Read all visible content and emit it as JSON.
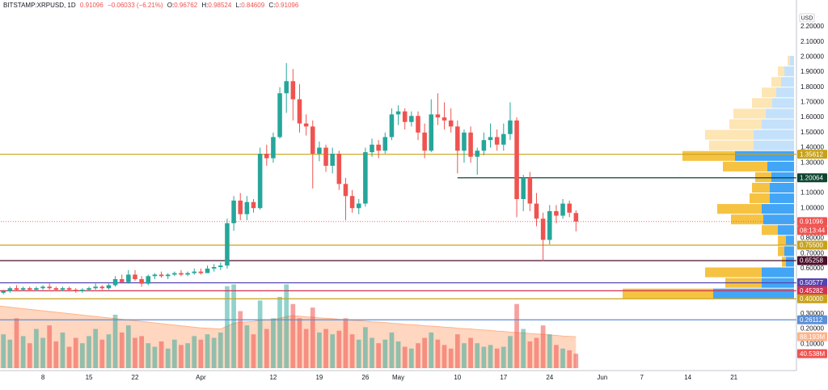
{
  "chart_data": {
    "type": "candlestick",
    "header": {
      "symbol": "BITSTAMP:XRPUSD, 1D",
      "change": "−0.06033 (−6.21%)",
      "o": "O:",
      "h": "H:",
      "l": "L:",
      "c": "C:"
    },
    "currency": "USD",
    "countdown": "08:13:44",
    "categories": [
      null,
      null,
      null,
      null,
      null,
      null,
      null,
      "8",
      null,
      null,
      null,
      null,
      null,
      null,
      "15",
      null,
      null,
      null,
      null,
      null,
      null,
      "22",
      null,
      null,
      null,
      null,
      null,
      null,
      null,
      null,
      null,
      "Apr",
      null,
      null,
      null,
      null,
      null,
      null,
      null,
      null,
      null,
      null,
      "12",
      null,
      null,
      null,
      null,
      null,
      null,
      "19",
      null,
      null,
      null,
      null,
      null,
      null,
      "26",
      null,
      null,
      null,
      null,
      "May",
      null,
      null,
      null,
      null,
      null,
      null,
      null,
      null,
      "10",
      null,
      null,
      null,
      null,
      null,
      null,
      "17",
      null,
      null,
      null,
      null,
      null,
      null,
      "24",
      null,
      null,
      null,
      null,
      null,
      null,
      null,
      "Jun",
      null,
      null,
      null,
      null,
      null,
      "7",
      null,
      null,
      null,
      null,
      null,
      null,
      "14",
      null,
      null,
      null,
      null,
      null,
      null,
      "21",
      null,
      null,
      null,
      null,
      null,
      null,
      null,
      null,
      null
    ],
    "open": [
      0.42,
      0.44,
      0.45,
      0.47,
      0.46,
      0.47,
      0.46,
      0.47,
      0.48,
      0.47,
      0.46,
      0.47,
      0.46,
      0.45,
      0.46,
      0.47,
      0.48,
      0.47,
      0.49,
      0.53,
      0.51,
      0.56,
      0.53,
      0.5,
      0.55,
      0.56,
      0.55,
      0.56,
      0.57,
      0.56,
      0.57,
      0.58,
      0.57,
      0.6,
      0.61,
      0.62,
      0.9,
      1.05,
      0.96,
      1.04,
      1.0,
      1.36,
      1.33,
      1.47,
      1.76,
      1.84,
      1.72,
      1.56,
      1.54,
      1.36,
      1.4,
      1.28,
      1.36,
      1.16,
      1.08,
      1.0,
      1.03,
      1.37,
      1.42,
      1.38,
      1.47,
      1.62,
      1.64,
      1.57,
      1.61,
      1.5,
      1.38,
      1.62,
      1.6,
      1.58,
      1.54,
      1.38,
      1.5,
      1.34,
      1.38,
      1.45,
      1.47,
      1.42,
      1.49,
      1.58,
      1.06,
      1.2,
      1.03,
      0.93,
      0.79,
      0.98,
      0.95,
      1.03,
      0.96762,
      null,
      null,
      null,
      null,
      null,
      null,
      null,
      null,
      null,
      null,
      null,
      null,
      null,
      null,
      null,
      null,
      null,
      null,
      null,
      null,
      null,
      null,
      null,
      null,
      null,
      null,
      null,
      null,
      null,
      null,
      null,
      null,
      null
    ],
    "high": [
      0.46,
      0.46,
      0.48,
      0.49,
      0.48,
      0.48,
      0.48,
      0.49,
      0.5,
      0.48,
      0.48,
      0.48,
      0.47,
      0.47,
      0.48,
      0.5,
      0.49,
      0.5,
      0.55,
      0.56,
      0.59,
      0.59,
      0.55,
      0.56,
      0.57,
      0.58,
      0.57,
      0.58,
      0.59,
      0.58,
      0.6,
      0.6,
      0.62,
      0.63,
      0.64,
      0.93,
      1.08,
      1.1,
      1.08,
      1.06,
      1.4,
      1.42,
      1.5,
      1.8,
      1.96,
      1.92,
      1.82,
      1.62,
      1.58,
      1.44,
      1.42,
      1.4,
      1.38,
      1.2,
      1.12,
      1.06,
      1.4,
      1.46,
      1.45,
      1.5,
      1.66,
      1.68,
      1.66,
      1.64,
      1.64,
      1.56,
      1.72,
      1.76,
      1.7,
      1.66,
      1.58,
      1.52,
      1.54,
      1.4,
      1.5,
      1.56,
      1.52,
      1.56,
      1.7,
      1.6,
      1.22,
      1.24,
      1.1,
      0.97,
      1.02,
      1.02,
      1.06,
      1.05,
      0.98524,
      null,
      null,
      null,
      null,
      null,
      null,
      null,
      null,
      null,
      null,
      null,
      null,
      null,
      null,
      null,
      null,
      null,
      null,
      null,
      null,
      null,
      null,
      null,
      null,
      null,
      null,
      null,
      null,
      null,
      null,
      null,
      null,
      null
    ],
    "low": [
      0.41,
      0.43,
      0.44,
      0.45,
      0.45,
      0.45,
      0.45,
      0.46,
      0.46,
      0.45,
      0.45,
      0.45,
      0.44,
      0.44,
      0.45,
      0.46,
      0.46,
      0.46,
      0.48,
      0.5,
      0.5,
      0.52,
      0.48,
      0.49,
      0.53,
      0.54,
      0.53,
      0.55,
      0.55,
      0.55,
      0.56,
      0.56,
      0.57,
      0.58,
      0.59,
      0.6,
      0.85,
      0.92,
      0.92,
      0.97,
      0.99,
      1.28,
      1.3,
      1.46,
      1.63,
      1.58,
      1.5,
      1.48,
      1.13,
      1.31,
      1.24,
      1.23,
      1.12,
      0.92,
      0.97,
      0.96,
      1.01,
      1.34,
      1.33,
      1.36,
      1.45,
      1.55,
      1.52,
      1.54,
      1.45,
      1.33,
      1.37,
      1.55,
      1.52,
      1.5,
      1.23,
      1.3,
      1.3,
      1.22,
      1.35,
      1.4,
      1.38,
      1.38,
      1.45,
      0.94,
      0.98,
      0.98,
      0.88,
      0.65,
      0.76,
      0.9,
      0.93,
      0.94,
      0.84609,
      null,
      null,
      null,
      null,
      null,
      null,
      null,
      null,
      null,
      null,
      null,
      null,
      null,
      null,
      null,
      null,
      null,
      null,
      null,
      null,
      null,
      null,
      null,
      null,
      null,
      null,
      null,
      null,
      null,
      null,
      null,
      null,
      null
    ],
    "close": [
      0.44,
      0.45,
      0.47,
      0.46,
      0.47,
      0.46,
      0.47,
      0.48,
      0.47,
      0.46,
      0.47,
      0.46,
      0.45,
      0.46,
      0.47,
      0.48,
      0.47,
      0.49,
      0.53,
      0.51,
      0.56,
      0.53,
      0.5,
      0.55,
      0.56,
      0.55,
      0.56,
      0.57,
      0.56,
      0.57,
      0.58,
      0.57,
      0.6,
      0.61,
      0.62,
      0.9,
      1.05,
      0.96,
      1.04,
      1.0,
      1.36,
      1.33,
      1.47,
      1.76,
      1.84,
      1.72,
      1.56,
      1.54,
      1.36,
      1.4,
      1.28,
      1.36,
      1.16,
      1.08,
      1.0,
      1.03,
      1.37,
      1.42,
      1.38,
      1.47,
      1.62,
      1.64,
      1.57,
      1.61,
      1.5,
      1.38,
      1.62,
      1.6,
      1.58,
      1.54,
      1.38,
      1.5,
      1.34,
      1.38,
      1.45,
      1.47,
      1.42,
      1.49,
      1.58,
      1.06,
      1.2,
      1.03,
      0.93,
      0.79,
      0.98,
      0.95,
      1.03,
      0.97,
      0.91096,
      null,
      null,
      null,
      null,
      null,
      null,
      null,
      null,
      null,
      null,
      null,
      null,
      null,
      null,
      null,
      null,
      null,
      null,
      null,
      null,
      null,
      null,
      null,
      null,
      null,
      null,
      null,
      null,
      null,
      null,
      null,
      null,
      null
    ],
    "up_color": "#26a69a",
    "down_color": "#ef5350",
    "ylim": [
      -0.075,
      2.377
    ],
    "yticks": [
      {
        "value": 2.2,
        "label": "2.20000"
      },
      {
        "value": 2.1,
        "label": "2.10000"
      },
      {
        "value": 2.0,
        "label": "2.00000"
      },
      {
        "value": 1.9,
        "label": "1.90000"
      },
      {
        "value": 1.8,
        "label": "1.80000"
      },
      {
        "value": 1.7,
        "label": "1.70000"
      },
      {
        "value": 1.6,
        "label": "1.60000"
      },
      {
        "value": 1.5,
        "label": "1.50000"
      },
      {
        "value": 1.4,
        "label": "1.40000"
      },
      {
        "value": 1.3,
        "label": "1.30000"
      },
      {
        "value": 1.1,
        "label": "1.10000"
      },
      {
        "value": 1.0,
        "label": "1.00000"
      },
      {
        "value": 0.8,
        "label": "0.80000"
      },
      {
        "value": 0.7,
        "label": "0.70000"
      },
      {
        "value": 0.6,
        "label": "0.60000"
      },
      {
        "value": 0.3,
        "label": "0.30000"
      },
      {
        "value": 0.2,
        "label": "0.20000"
      },
      {
        "value": 0.1,
        "label": "0.10000"
      }
    ],
    "grid": false,
    "volume": {
      "values": [
        130,
        95,
        80,
        140,
        90,
        70,
        110,
        85,
        120,
        75,
        100,
        60,
        85,
        70,
        90,
        110,
        80,
        95,
        150,
        100,
        120,
        85,
        90,
        70,
        60,
        75,
        55,
        80,
        65,
        70,
        90,
        80,
        95,
        85,
        100,
        230,
        235,
        160,
        120,
        95,
        190,
        110,
        140,
        200,
        235,
        180,
        140,
        110,
        170,
        100,
        110,
        95,
        105,
        140,
        95,
        80,
        115,
        85,
        70,
        80,
        100,
        75,
        60,
        55,
        70,
        85,
        100,
        80,
        65,
        55,
        95,
        70,
        85,
        70,
        60,
        65,
        55,
        60,
        90,
        180,
        110,
        75,
        85,
        120,
        95,
        65,
        55,
        50,
        40.538,
        null,
        null,
        null,
        null,
        null,
        null,
        null,
        null,
        null,
        null,
        null,
        null,
        null,
        null,
        null,
        null,
        null,
        null,
        null,
        null,
        null,
        null,
        null,
        null,
        null,
        null,
        null,
        null,
        null,
        null,
        null,
        null,
        null
      ],
      "last_label": "40.538M",
      "up_color": "rgba(38,166,154,0.5)",
      "down_color": "rgba(239,83,80,0.55)",
      "label_color": "#ef5350"
    },
    "volume_ma": {
      "values": [
        175,
        173,
        171,
        169,
        167,
        165,
        163,
        161,
        159,
        157,
        155,
        153,
        151,
        149,
        147,
        145,
        143,
        141,
        139,
        137,
        135,
        133,
        131,
        129,
        127,
        125,
        123,
        121,
        119,
        117,
        115,
        113,
        112,
        111,
        110,
        118,
        126,
        129,
        130,
        131,
        134,
        135,
        137,
        140,
        145,
        147,
        146,
        144,
        143,
        141,
        140,
        139,
        137,
        136,
        134,
        133,
        132,
        130,
        129,
        128,
        126,
        125,
        123,
        122,
        121,
        119,
        118,
        117,
        115,
        114,
        112,
        111,
        110,
        108,
        107,
        106,
        104,
        103,
        101,
        100,
        99,
        97,
        96,
        95,
        93,
        92,
        90,
        89,
        88.193,
        null,
        null,
        null,
        null,
        null,
        null,
        null,
        null,
        null,
        null,
        null,
        null,
        null,
        null,
        null,
        null,
        null,
        null,
        null,
        null,
        null,
        null,
        null,
        null,
        null,
        null,
        null,
        null,
        null,
        null,
        null,
        null,
        null
      ],
      "last_label": "88.193M",
      "color": "#ffb48a"
    },
    "vlim": [
      -6.8,
      1033
    ],
    "profile": {
      "bins": [
        0.4,
        0.47,
        0.54,
        0.61,
        0.68,
        0.75,
        0.82,
        0.89,
        0.96,
        1.03,
        1.1,
        1.17,
        1.24,
        1.31,
        1.38,
        1.45,
        1.52,
        1.59,
        1.66,
        1.73,
        1.8,
        1.87,
        1.94,
        2.01
      ],
      "down": [
        112,
        45,
        70,
        5,
        8,
        10,
        20,
        40,
        55,
        25,
        22,
        20,
        55,
        65,
        55,
        60,
        40,
        40,
        25,
        18,
        12,
        8,
        3
      ],
      "up": [
        100,
        40,
        40,
        10,
        12,
        10,
        20,
        38,
        40,
        30,
        30,
        28,
        33,
        73,
        50,
        50,
        40,
        35,
        27,
        22,
        16,
        12,
        5
      ],
      "value_area": [
        0.4,
        1.38
      ],
      "down_color": "#f5c242",
      "up_color": "#42a5f5",
      "down_light": "#fde5b4",
      "up_light": "#c4e1fb"
    },
    "profile_lim": [
      0,
      215
    ],
    "levels": [
      {
        "value": 1.35612,
        "label": "1.35612",
        "color": "#c9a21a"
      },
      {
        "value": 1.20064,
        "label": "1.20064",
        "color": "#0d4430",
        "start": 70
      },
      {
        "value": 0.755,
        "label": "0.75500",
        "color": "#c9a21a"
      },
      {
        "value": 0.65258,
        "label": "0.65258",
        "color": "#4a0f2a"
      },
      {
        "value": 0.50577,
        "label": "0.50577",
        "color": "#5643b0"
      },
      {
        "value": 0.45282,
        "label": "0.45282",
        "color": "#d6304f"
      },
      {
        "value": 0.4,
        "label": "0.40000",
        "color": "#c9a21a"
      },
      {
        "value": 0.26112,
        "label": "0.26112",
        "color": "#5b8fd6"
      }
    ]
  }
}
